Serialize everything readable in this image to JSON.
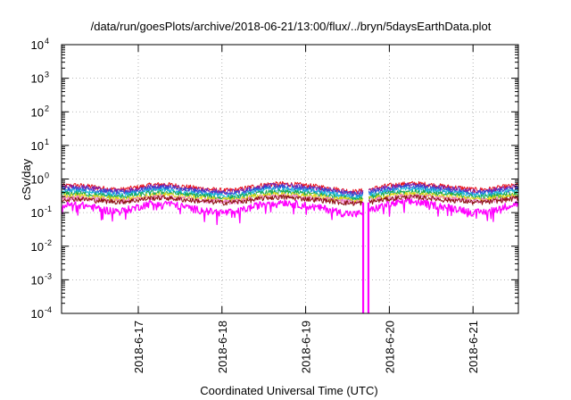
{
  "chart_data": {
    "type": "line",
    "title": "/data/run/goesPlots/archive/2018-06-21/13:00/flux/../bryn/5daysEarthData.plot",
    "xlabel": "Coordinated Universal Time (UTC)",
    "ylabel": "cSv/day",
    "yscale": "log",
    "ylim": [
      0.0001,
      10000
    ],
    "xlim": [
      "2018-06-16 02:00",
      "2018-06-21 13:00"
    ],
    "x_ticks": [
      "2018-6-17",
      "2018-6-18",
      "2018-6-19",
      "2018-6-20",
      "2018-6-21"
    ],
    "y_ticks": [
      {
        "base": "10",
        "exp": "-4"
      },
      {
        "base": "10",
        "exp": "-3"
      },
      {
        "base": "10",
        "exp": "-2"
      },
      {
        "base": "10",
        "exp": "-1"
      },
      {
        "base": "10",
        "exp": "0"
      },
      {
        "base": "10",
        "exp": "1"
      },
      {
        "base": "10",
        "exp": "2"
      },
      {
        "base": "10",
        "exp": "3"
      },
      {
        "base": "10",
        "exp": "4"
      }
    ],
    "grid": true,
    "legend": "none",
    "data_gap": [
      "2018-06-19 16:30",
      "2018-06-19 18:00"
    ],
    "series": [
      {
        "color": "#e8101a",
        "values": [
          0.62,
          0.65,
          0.6,
          0.52,
          0.48,
          0.55,
          0.66,
          0.7,
          0.62,
          0.55,
          0.5,
          0.45,
          0.48,
          0.6,
          0.7,
          0.72,
          0.68,
          0.62,
          0.55,
          0.47,
          0.42,
          0.5,
          0.62,
          0.7,
          0.74,
          0.68,
          0.6,
          0.55,
          0.48,
          0.5,
          0.58,
          0.66
        ]
      },
      {
        "color": "#7a1fb0",
        "values": [
          0.56,
          0.59,
          0.54,
          0.47,
          0.43,
          0.5,
          0.6,
          0.63,
          0.56,
          0.5,
          0.45,
          0.41,
          0.43,
          0.54,
          0.63,
          0.65,
          0.61,
          0.56,
          0.5,
          0.42,
          0.38,
          0.45,
          0.56,
          0.63,
          0.67,
          0.61,
          0.54,
          0.5,
          0.43,
          0.45,
          0.52,
          0.6
        ]
      },
      {
        "color": "#2a4fd8",
        "values": [
          0.5,
          0.52,
          0.48,
          0.42,
          0.38,
          0.44,
          0.53,
          0.56,
          0.5,
          0.44,
          0.4,
          0.36,
          0.38,
          0.48,
          0.56,
          0.58,
          0.54,
          0.5,
          0.44,
          0.38,
          0.34,
          0.4,
          0.5,
          0.56,
          0.59,
          0.54,
          0.48,
          0.44,
          0.38,
          0.4,
          0.46,
          0.53
        ]
      },
      {
        "color": "#18b8d8",
        "values": [
          0.42,
          0.44,
          0.41,
          0.36,
          0.33,
          0.38,
          0.45,
          0.48,
          0.43,
          0.38,
          0.34,
          0.31,
          0.33,
          0.41,
          0.48,
          0.49,
          0.46,
          0.42,
          0.38,
          0.32,
          0.29,
          0.34,
          0.42,
          0.48,
          0.5,
          0.46,
          0.41,
          0.38,
          0.33,
          0.34,
          0.39,
          0.45
        ]
      },
      {
        "color": "#1aa84a",
        "values": [
          0.36,
          0.37,
          0.35,
          0.31,
          0.29,
          0.33,
          0.38,
          0.4,
          0.36,
          0.33,
          0.3,
          0.27,
          0.29,
          0.35,
          0.4,
          0.41,
          0.39,
          0.36,
          0.33,
          0.28,
          0.26,
          0.3,
          0.36,
          0.4,
          0.42,
          0.39,
          0.35,
          0.33,
          0.29,
          0.3,
          0.34,
          0.38
        ]
      },
      {
        "color": "#e6d814",
        "values": [
          0.31,
          0.32,
          0.3,
          0.27,
          0.25,
          0.28,
          0.33,
          0.34,
          0.31,
          0.28,
          0.26,
          0.24,
          0.25,
          0.3,
          0.34,
          0.35,
          0.33,
          0.31,
          0.28,
          0.25,
          0.23,
          0.26,
          0.31,
          0.34,
          0.36,
          0.33,
          0.3,
          0.28,
          0.25,
          0.26,
          0.29,
          0.33
        ]
      },
      {
        "color": "#f078c8",
        "values": [
          0.27,
          0.28,
          0.26,
          0.24,
          0.22,
          0.25,
          0.29,
          0.3,
          0.27,
          0.25,
          0.23,
          0.21,
          0.22,
          0.26,
          0.3,
          0.31,
          0.29,
          0.27,
          0.25,
          0.22,
          0.2,
          0.23,
          0.27,
          0.3,
          0.31,
          0.29,
          0.26,
          0.25,
          0.22,
          0.23,
          0.26,
          0.29
        ]
      },
      {
        "color": "#8a1010",
        "values": [
          0.25,
          0.26,
          0.24,
          0.22,
          0.21,
          0.23,
          0.27,
          0.28,
          0.25,
          0.23,
          0.21,
          0.2,
          0.21,
          0.24,
          0.28,
          0.29,
          0.27,
          0.25,
          0.23,
          0.2,
          0.19,
          0.21,
          0.25,
          0.28,
          0.29,
          0.27,
          0.24,
          0.23,
          0.2,
          0.21,
          0.24,
          0.27
        ]
      },
      {
        "color": "#ff00ff",
        "values": [
          0.16,
          0.18,
          0.15,
          0.12,
          0.11,
          0.14,
          0.19,
          0.2,
          0.16,
          0.13,
          0.11,
          0.1,
          0.11,
          0.15,
          0.2,
          0.21,
          0.18,
          0.15,
          0.13,
          0.1,
          0.09,
          0.12,
          0.17,
          0.2,
          0.21,
          0.18,
          0.15,
          0.13,
          0.1,
          0.11,
          0.15,
          0.19
        ]
      }
    ]
  }
}
